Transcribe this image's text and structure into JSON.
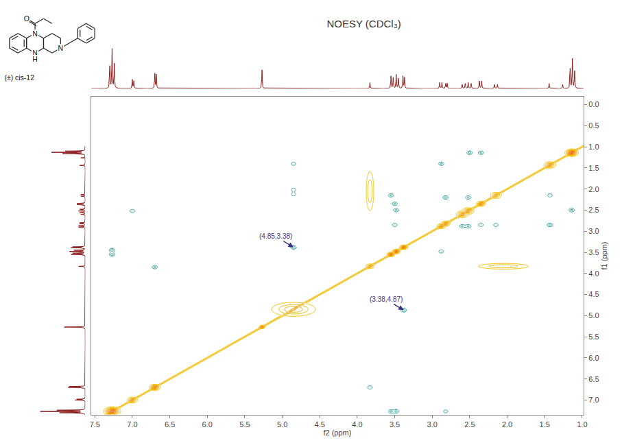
{
  "chart_data": {
    "type": "contour",
    "title": "NOESY (CDCl₃)",
    "compound_label": "(±) cis-12",
    "structure_atoms": [
      "O",
      "N",
      "N",
      "H",
      "N"
    ],
    "x_label": "f2 (ppm)",
    "y_label": "f1 (ppm)",
    "xlim": [
      7.55,
      0.98
    ],
    "ylim": [
      7.35,
      -0.19
    ],
    "xticks": [
      7.5,
      {
        "value": 7,
        "label": "7.0"
      },
      6.5,
      {
        "value": 6,
        "label": "6.0"
      },
      5.5,
      {
        "value": 5,
        "label": "5.0"
      },
      4.5,
      {
        "value": 4,
        "label": "4.0"
      },
      3.5,
      {
        "value": 3,
        "label": "3.0"
      },
      2.5,
      {
        "value": 2,
        "label": "2.0"
      },
      1.5,
      {
        "value": 1,
        "label": "1.0"
      }
    ],
    "yticks": [
      {
        "value": 0,
        "label": "0.0"
      },
      0.5,
      {
        "value": 1,
        "label": "1.0"
      },
      1.5,
      {
        "value": 2,
        "label": "2.0"
      },
      2.5,
      {
        "value": 3,
        "label": "3.0"
      },
      3.5,
      {
        "value": 4,
        "label": "4.0"
      },
      4.5,
      {
        "value": 5,
        "label": "5.0"
      },
      5.5,
      {
        "value": 6,
        "label": "6.0"
      },
      6.5,
      {
        "value": 7,
        "label": "7.0"
      }
    ],
    "grid": false,
    "diagonal": {
      "colors": [
        "#f2c200",
        "#f08a00",
        "#d8261a"
      ],
      "peaks": [
        {
          "ppm": 7.27,
          "height": 100,
          "width_f2": 0.05,
          "width_f1": 0.05
        },
        {
          "ppm": 7.0,
          "height": 50,
          "width_f2": 0.035,
          "width_f1": 0.035
        },
        {
          "ppm": 6.7,
          "height": 70,
          "width_f2": 0.035,
          "width_f1": 0.035
        },
        {
          "ppm": 5.27,
          "height": 60,
          "width_f2": 0.02,
          "width_f1": 0.02
        },
        {
          "ppm": 4.85,
          "height": 40,
          "width_f2": 0.16,
          "width_f1": 0.09
        },
        {
          "ppm": 3.83,
          "height": 40,
          "width_f2": 0.03,
          "width_f1": 0.03
        },
        {
          "ppm": 3.55,
          "height": 80,
          "width_f2": 0.025,
          "width_f1": 0.025
        },
        {
          "ppm": 3.48,
          "height": 80,
          "width_f2": 0.025,
          "width_f1": 0.025
        },
        {
          "ppm": 3.38,
          "height": 80,
          "width_f2": 0.025,
          "width_f1": 0.025
        },
        {
          "ppm": 2.88,
          "height": 50,
          "width_f2": 0.03,
          "width_f1": 0.03
        },
        {
          "ppm": 2.82,
          "height": 50,
          "width_f2": 0.03,
          "width_f1": 0.03
        },
        {
          "ppm": 2.6,
          "height": 50,
          "width_f2": 0.04,
          "width_f1": 0.04
        },
        {
          "ppm": 2.52,
          "height": 50,
          "width_f2": 0.04,
          "width_f1": 0.04
        },
        {
          "ppm": 2.35,
          "height": 60,
          "width_f2": 0.03,
          "width_f1": 0.03
        },
        {
          "ppm": 2.15,
          "height": 40,
          "width_f2": 0.04,
          "width_f1": 0.04
        },
        {
          "ppm": 1.43,
          "height": 50,
          "width_f2": 0.04,
          "width_f1": 0.04
        },
        {
          "ppm": 1.14,
          "height": 100,
          "width_f2": 0.04,
          "width_f1": 0.04
        }
      ],
      "cross_peaks": [
        {
          "f2": 2.05,
          "f1": 3.83,
          "height": 30,
          "width_f2": 0.2,
          "width_f1": 0.04
        },
        {
          "f2": 3.83,
          "f1": 2.05,
          "height": 30,
          "width_f2": 0.03,
          "width_f1": 0.28
        }
      ]
    },
    "cross_peaks": {
      "color": "#2f9e98",
      "peaks": [
        {
          "f2": 4.85,
          "f1": 3.38,
          "height": 20
        },
        {
          "f2": 3.38,
          "f1": 4.87,
          "height": 20
        },
        {
          "f2": 4.85,
          "f1": 1.4,
          "height": 14
        },
        {
          "f2": 4.85,
          "f1": 2.02,
          "height": 14
        },
        {
          "f2": 4.85,
          "f1": 2.12,
          "height": 14
        },
        {
          "f2": 7.27,
          "f1": 3.45,
          "height": 18
        },
        {
          "f2": 7.27,
          "f1": 3.55,
          "height": 18
        },
        {
          "f2": 7.0,
          "f1": 2.52,
          "height": 14
        },
        {
          "f2": 6.7,
          "f1": 3.85,
          "height": 16
        },
        {
          "f2": 3.83,
          "f1": 6.7,
          "height": 14
        },
        {
          "f2": 3.55,
          "f1": 7.27,
          "height": 16
        },
        {
          "f2": 3.48,
          "f1": 7.27,
          "height": 16
        },
        {
          "f2": 2.82,
          "f1": 7.27,
          "height": 12
        },
        {
          "f2": 3.55,
          "f1": 2.15,
          "height": 16
        },
        {
          "f2": 3.5,
          "f1": 2.35,
          "height": 16
        },
        {
          "f2": 3.48,
          "f1": 2.5,
          "height": 16
        },
        {
          "f2": 3.5,
          "f1": 2.85,
          "height": 14
        },
        {
          "f2": 2.88,
          "f1": 3.48,
          "height": 14
        },
        {
          "f2": 2.82,
          "f1": 2.2,
          "height": 18
        },
        {
          "f2": 2.88,
          "f1": 1.4,
          "height": 16
        },
        {
          "f2": 2.6,
          "f1": 2.88,
          "height": 16
        },
        {
          "f2": 2.52,
          "f1": 2.88,
          "height": 16
        },
        {
          "f2": 2.52,
          "f1": 2.2,
          "height": 16
        },
        {
          "f2": 2.35,
          "f1": 2.85,
          "height": 14
        },
        {
          "f2": 2.15,
          "f1": 2.85,
          "height": 14
        },
        {
          "f2": 1.43,
          "f1": 2.85,
          "height": 18
        },
        {
          "f2": 1.43,
          "f1": 2.15,
          "height": 14
        },
        {
          "f2": 1.14,
          "f1": 2.5,
          "height": 18
        },
        {
          "f2": 2.5,
          "f1": 1.14,
          "height": 18
        },
        {
          "f2": 2.35,
          "f1": 1.14,
          "height": 16
        }
      ]
    },
    "annotations": [
      {
        "text": "(4.85,3.38)",
        "x": 4.85,
        "y": 3.38,
        "color": "#3b2f80"
      },
      {
        "text": "(3.38,4.87)",
        "x": 3.38,
        "y": 4.87,
        "color": "#3b2f80"
      }
    ],
    "projection": {
      "color": "#8b1a1a",
      "lim": [
        0,
        100
      ],
      "peaks": [
        {
          "ppm": 7.3,
          "height": 45
        },
        {
          "ppm": 7.27,
          "height": 80
        },
        {
          "ppm": 7.24,
          "height": 50
        },
        {
          "ppm": 7.0,
          "height": 18
        },
        {
          "ppm": 6.98,
          "height": 15
        },
        {
          "ppm": 6.7,
          "height": 30
        },
        {
          "ppm": 6.68,
          "height": 28
        },
        {
          "ppm": 5.27,
          "height": 38
        },
        {
          "ppm": 3.83,
          "height": 12
        },
        {
          "ppm": 3.55,
          "height": 25
        },
        {
          "ppm": 3.52,
          "height": 22
        },
        {
          "ppm": 3.48,
          "height": 28
        },
        {
          "ppm": 3.45,
          "height": 20
        },
        {
          "ppm": 3.39,
          "height": 25
        },
        {
          "ppm": 3.37,
          "height": 22
        },
        {
          "ppm": 2.9,
          "height": 12
        },
        {
          "ppm": 2.87,
          "height": 12
        },
        {
          "ppm": 2.82,
          "height": 10
        },
        {
          "ppm": 2.8,
          "height": 10
        },
        {
          "ppm": 2.6,
          "height": 8
        },
        {
          "ppm": 2.56,
          "height": 10
        },
        {
          "ppm": 2.52,
          "height": 12
        },
        {
          "ppm": 2.48,
          "height": 10
        },
        {
          "ppm": 2.37,
          "height": 15
        },
        {
          "ppm": 2.34,
          "height": 15
        },
        {
          "ppm": 2.17,
          "height": 8
        },
        {
          "ppm": 2.13,
          "height": 8
        },
        {
          "ppm": 1.44,
          "height": 10
        },
        {
          "ppm": 1.26,
          "height": 8
        },
        {
          "ppm": 1.16,
          "height": 40
        },
        {
          "ppm": 1.13,
          "height": 60
        },
        {
          "ppm": 1.1,
          "height": 35
        }
      ]
    }
  }
}
